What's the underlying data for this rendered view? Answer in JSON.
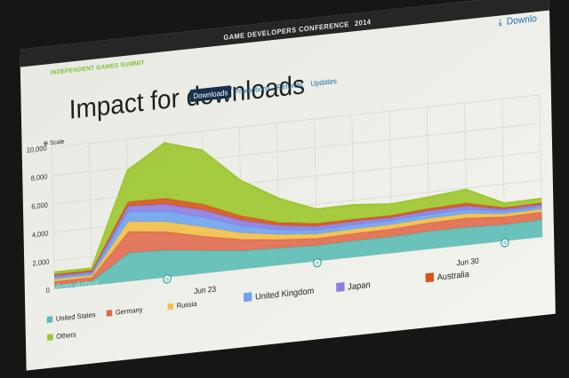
{
  "header": {
    "conference": "GAME DEVELOPERS CONFERENCE",
    "year": "2014",
    "summit": "INDEPENDENT GAMES SUMMIT",
    "download_link": "Downlo"
  },
  "colors": {
    "screen_bg": "#f2f2ec",
    "header_bar": "#262626",
    "summit_green": "#7dbf39",
    "tab_active_bg": "#17324f",
    "link_blue": "#1f6fae",
    "grid": "#d8d8d0",
    "marker": "#3aa3a0"
  },
  "tabs": [
    {
      "label": "Downloads",
      "active": true
    },
    {
      "label": "Promotions",
      "active": false
    },
    {
      "label": "Refunds",
      "active": false
    },
    {
      "label": "Updates",
      "active": false
    }
  ],
  "scale_label": "Scale",
  "watermark": "Ann Arbor",
  "chart_data": {
    "type": "area",
    "stacked": true,
    "title": "Impact for downloads",
    "xlabel": "",
    "ylabel": "",
    "ylim": [
      0,
      10000
    ],
    "yticks": [
      "0",
      "2,000",
      "4,000",
      "6,000",
      "8,000",
      "10,000"
    ],
    "x": [
      "Jun 19",
      "Jun 20",
      "Jun 21",
      "Jun 22",
      "Jun 23",
      "Jun 24",
      "Jun 25",
      "Jun 26",
      "Jun 27",
      "Jun 28",
      "Jun 29",
      "Jun 30",
      "Jul 1",
      "Jul 2"
    ],
    "xtick_labels": [
      {
        "x": "Jun 23",
        "label": "Jun 23"
      },
      {
        "x": "Jun 30",
        "label": "Jun 30"
      }
    ],
    "series": [
      {
        "name": "United States",
        "color": "#5bbcb5",
        "values": [
          300,
          300,
          2000,
          1900,
          1600,
          1300,
          1200,
          1100,
          1150,
          1150,
          1250,
          1250,
          1150,
          1200
        ]
      },
      {
        "name": "Germany",
        "color": "#e06a4e",
        "values": [
          250,
          250,
          1500,
          1300,
          1000,
          800,
          600,
          500,
          520,
          550,
          600,
          650,
          550,
          550
        ]
      },
      {
        "name": "Russia",
        "color": "#f2c04a",
        "values": [
          150,
          150,
          700,
          700,
          650,
          450,
          350,
          300,
          300,
          300,
          300,
          300,
          200,
          200
        ]
      },
      {
        "name": "United Kingdom",
        "color": "#6fa3ef",
        "values": [
          150,
          150,
          700,
          750,
          700,
          500,
          350,
          300,
          300,
          300,
          300,
          300,
          200,
          200
        ]
      },
      {
        "name": "Japan",
        "color": "#8e7de0",
        "values": [
          100,
          100,
          400,
          500,
          500,
          400,
          300,
          250,
          250,
          200,
          250,
          250,
          150,
          150
        ]
      },
      {
        "name": "Australia",
        "color": "#d9531e",
        "values": [
          100,
          100,
          300,
          400,
          400,
          300,
          200,
          200,
          150,
          150,
          150,
          200,
          100,
          100
        ]
      },
      {
        "name": "Others",
        "color": "#9dc62f",
        "values": [
          150,
          150,
          2200,
          3900,
          3800,
          2500,
          1700,
          1000,
          1000,
          800,
          800,
          950,
          300,
          300
        ]
      }
    ],
    "markers": [
      "Jun 22",
      "Jun 26",
      "Jul 1"
    ],
    "grid": true,
    "legend_position": "bottom"
  }
}
